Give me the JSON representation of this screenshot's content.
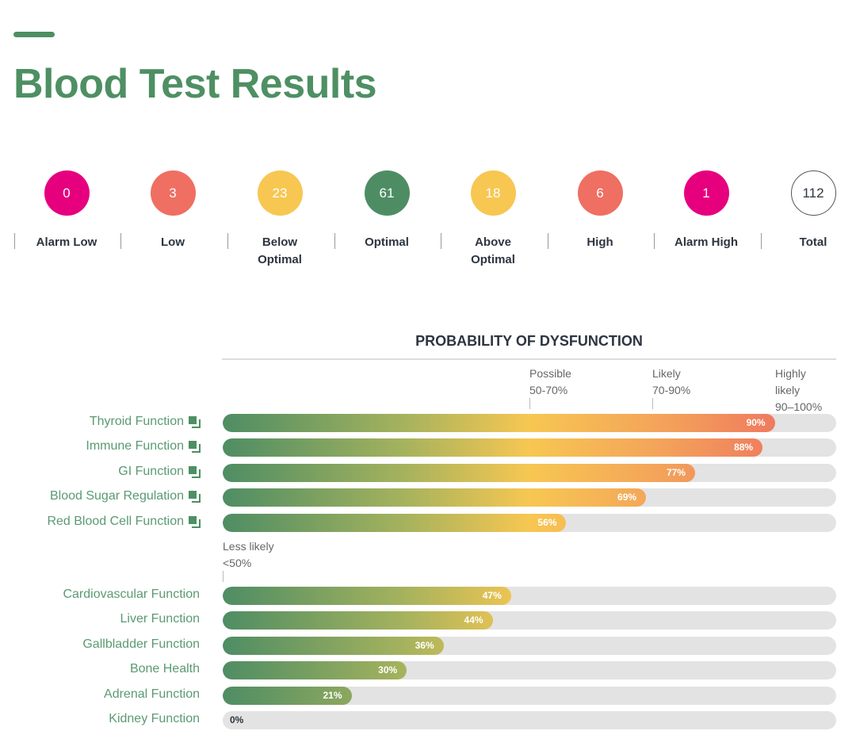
{
  "title": "Blood Test Results",
  "stats": [
    {
      "value": "0",
      "label": "Alarm Low",
      "color": "#e6007e"
    },
    {
      "value": "3",
      "label": "Low",
      "color": "#ef6f62"
    },
    {
      "value": "23",
      "label": "Below Optimal",
      "color": "#f7c752"
    },
    {
      "value": "61",
      "label": "Optimal",
      "color": "#4e8d64"
    },
    {
      "value": "18",
      "label": "Above Optimal",
      "color": "#f7c752"
    },
    {
      "value": "6",
      "label": "High",
      "color": "#ef6f62"
    },
    {
      "value": "1",
      "label": "Alarm High",
      "color": "#e6007e"
    },
    {
      "value": "112",
      "label": "Total",
      "color": "#ffffff"
    }
  ],
  "chart_data": {
    "type": "bar",
    "title": "PROBABILITY OF DYSFUNCTION",
    "zones": [
      {
        "name": "Less likely",
        "range": "<50%"
      },
      {
        "name": "Possible",
        "range": "50-70%"
      },
      {
        "name": "Likely",
        "range": "70-90%"
      },
      {
        "name": "Highly likely",
        "range": "90–100%"
      }
    ],
    "unit": "%",
    "xlim": [
      0,
      100
    ],
    "categories": [
      "Thyroid Function",
      "Immune Function",
      "GI Function",
      "Blood Sugar Regulation",
      "Red Blood Cell Function",
      "Cardiovascular Function",
      "Liver Function",
      "Gallbladder Function",
      "Bone Health",
      "Adrenal Function",
      "Kidney Function"
    ],
    "values": [
      90,
      88,
      77,
      69,
      56,
      47,
      44,
      36,
      30,
      21,
      0
    ],
    "has_link_icon": [
      true,
      true,
      true,
      true,
      true,
      false,
      false,
      false,
      false,
      false,
      false
    ]
  }
}
